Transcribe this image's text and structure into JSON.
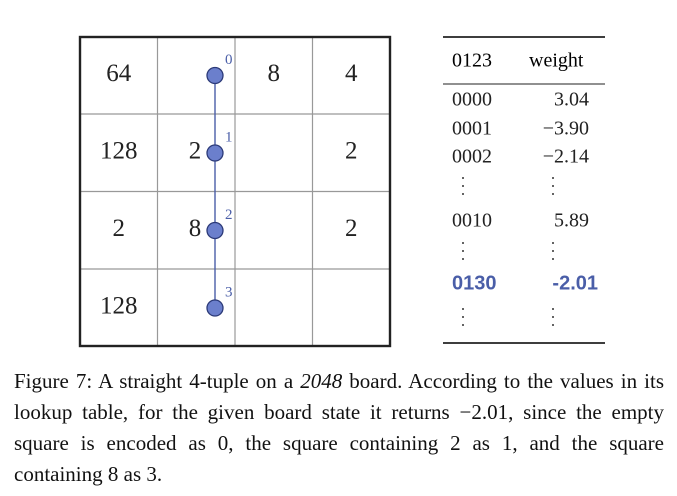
{
  "board": {
    "rows": [
      [
        "64",
        null,
        "8",
        "4"
      ],
      [
        "128",
        "2",
        null,
        "2"
      ],
      [
        "2",
        "8",
        null,
        "2"
      ],
      [
        "128",
        null,
        null,
        null
      ]
    ]
  },
  "tuple": {
    "labels": [
      "0",
      "1",
      "2",
      "3"
    ]
  },
  "table": {
    "header": [
      "0123",
      "weight"
    ],
    "rows": [
      [
        "0000",
        "3.04"
      ],
      [
        "0001",
        "−3.90"
      ],
      [
        "0002",
        "−2.14"
      ],
      [
        "0010",
        "5.89"
      ]
    ],
    "highlighted_row": [
      "0130",
      "-2.01"
    ]
  },
  "caption": {
    "parts": [
      "Figure 7: A straight 4-tuple on a ",
      "2048",
      " board. According to the values in its lookup table, for the given board state it returns −2.01, since the empty square is encoded as 0, the square containing 2 as 1, and the square containing 8 as 3."
    ]
  }
}
